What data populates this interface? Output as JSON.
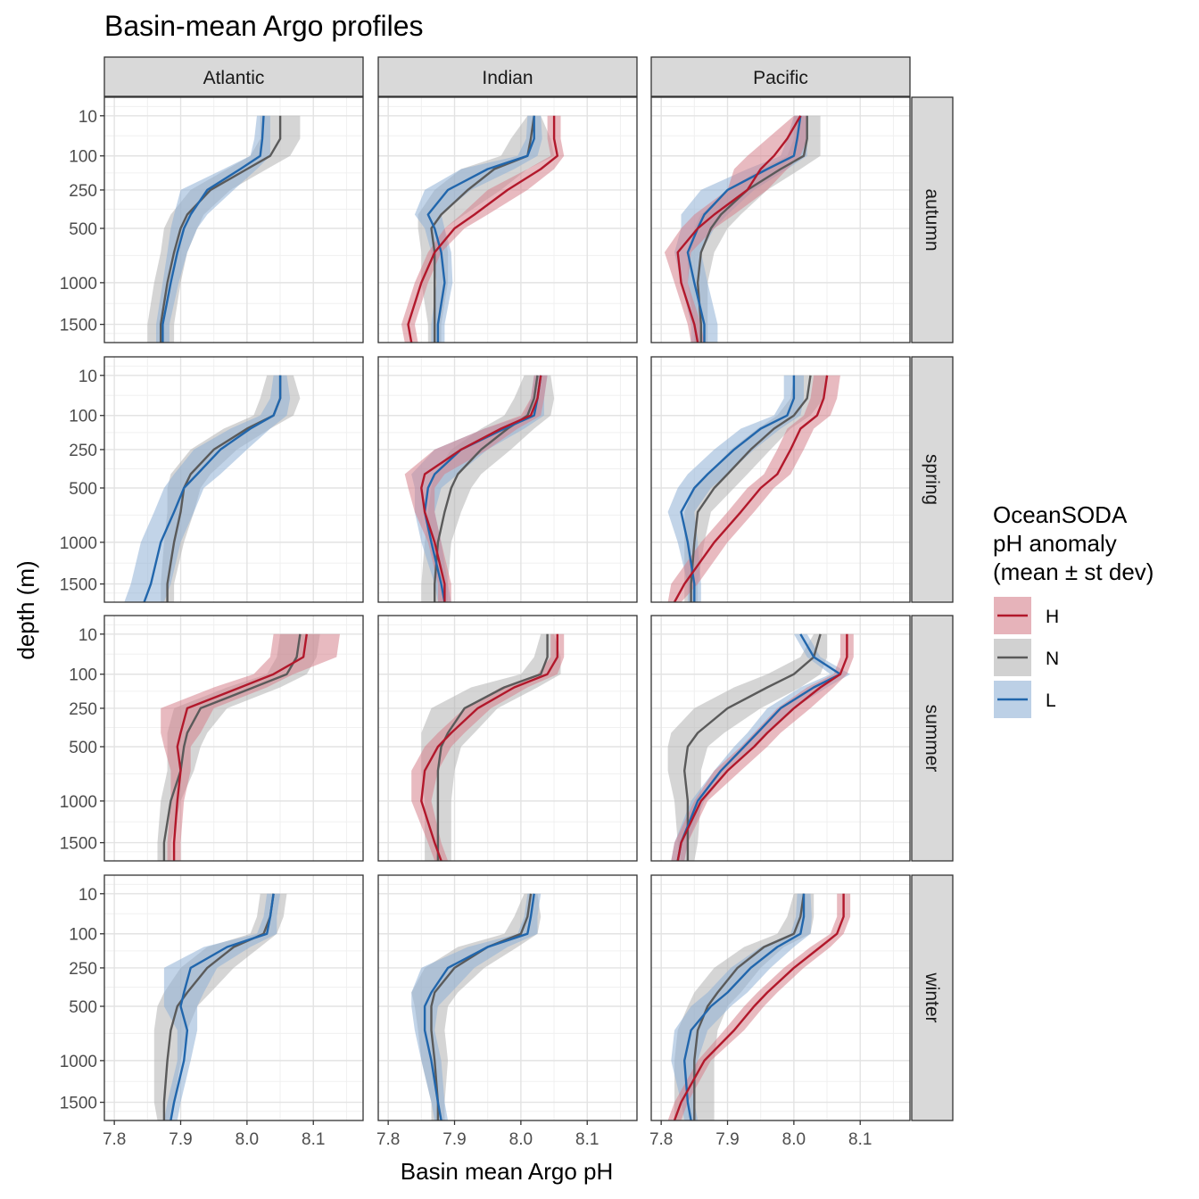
{
  "chart_data": {
    "type": "line",
    "title": "Basin-mean Argo profiles",
    "xlabel": "Basin mean Argo pH",
    "ylabel": "depth (m)",
    "xlim": [
      7.785,
      8.175
    ],
    "x_ticks": [
      7.8,
      7.9,
      8.0,
      8.1
    ],
    "x_tick_labels": [
      "7.8",
      "7.9",
      "8.0",
      "8.1"
    ],
    "y_scale": "sqrt-reversed",
    "ylim": [
      1750,
      0
    ],
    "y_ticks": [
      10,
      100,
      250,
      500,
      1000,
      1500
    ],
    "y_tick_labels": [
      "10",
      "100",
      "250",
      "500",
      "1000",
      "1500"
    ],
    "columns": [
      "Atlantic",
      "Indian",
      "Pacific"
    ],
    "rows": [
      "autumn",
      "spring",
      "summer",
      "winter"
    ],
    "depths": [
      10,
      50,
      100,
      150,
      250,
      400,
      500,
      700,
      1000,
      1500,
      1750
    ],
    "legend": {
      "title_lines": [
        "OceanSODA",
        "pH anomaly",
        "(mean ± st dev)"
      ],
      "entries": [
        {
          "key": "H",
          "label": "H",
          "color": "#b2182b",
          "band": "#d6818c"
        },
        {
          "key": "N",
          "label": "N",
          "color": "#5a5a5a",
          "band": "#b3b3b3"
        },
        {
          "key": "L",
          "label": "L",
          "color": "#2166ac",
          "band": "#8fb0d6"
        }
      ]
    },
    "panels": [
      {
        "basin": "Atlantic",
        "season": "autumn",
        "series": [
          {
            "name": "N",
            "mean": [
              8.05,
              8.05,
              8.035,
              8.0,
              7.945,
              7.91,
              7.9,
              7.89,
              7.88,
              7.87,
              7.87
            ],
            "sd": [
              0.03,
              0.03,
              0.03,
              0.03,
              0.03,
              0.025,
              0.025,
              0.02,
              0.02,
              0.02,
              0.02
            ]
          },
          {
            "name": "L",
            "mean": [
              8.025,
              8.023,
              8.02,
              7.99,
              7.94,
              7.915,
              7.905,
              7.895,
              7.885,
              7.873,
              7.873
            ],
            "sd": [
              0.01,
              0.012,
              0.015,
              0.025,
              0.04,
              0.025,
              0.02,
              0.015,
              0.012,
              0.01,
              0.01
            ]
          }
        ]
      },
      {
        "basin": "Indian",
        "season": "autumn",
        "series": [
          {
            "name": "H",
            "mean": [
              8.05,
              8.05,
              8.055,
              8.03,
              7.98,
              7.93,
              7.9,
              7.87,
              7.85,
              7.83,
              7.835
            ],
            "sd": [
              0.01,
              0.01,
              0.01,
              0.02,
              0.03,
              0.02,
              0.015,
              0.01,
              0.01,
              0.01,
              0.01
            ]
          },
          {
            "name": "N",
            "mean": [
              8.02,
              8.015,
              8.01,
              7.96,
              7.92,
              7.88,
              7.865,
              7.87,
              7.87,
              7.87,
              7.87
            ],
            "sd": [
              0.01,
              0.03,
              0.04,
              0.05,
              0.05,
              0.035,
              0.02,
              0.02,
              0.02,
              0.01,
              0.01
            ]
          },
          {
            "name": "L",
            "mean": [
              8.02,
              8.02,
              8.01,
              7.95,
              7.89,
              7.86,
              7.87,
              7.88,
              7.885,
              7.875,
              7.875
            ],
            "sd": [
              0.01,
              0.012,
              0.015,
              0.04,
              0.035,
              0.02,
              0.015,
              0.015,
              0.012,
              0.01,
              0.01
            ]
          }
        ]
      },
      {
        "basin": "Pacific",
        "season": "autumn",
        "series": [
          {
            "name": "H",
            "mean": [
              8.01,
              7.99,
              7.97,
              7.95,
              7.93,
              7.88,
              7.855,
              7.825,
              7.83,
              7.85,
              7.855
            ],
            "sd": [
              0.01,
              0.03,
              0.04,
              0.04,
              0.03,
              0.03,
              0.025,
              0.02,
              0.01,
              0.01,
              0.01
            ]
          },
          {
            "name": "N",
            "mean": [
              8.02,
              8.02,
              8.015,
              7.98,
              7.93,
              7.89,
              7.875,
              7.86,
              7.855,
              7.86,
              7.86
            ],
            "sd": [
              0.02,
              0.02,
              0.025,
              0.03,
              0.03,
              0.03,
              0.025,
              0.02,
              0.015,
              0.01,
              0.01
            ]
          },
          {
            "name": "L",
            "mean": [
              8.01,
              8.005,
              8.0,
              7.96,
              7.9,
              7.865,
              7.855,
              7.84,
              7.85,
              7.865,
              7.865
            ],
            "sd": [
              0.01,
              0.015,
              0.02,
              0.03,
              0.04,
              0.035,
              0.025,
              0.02,
              0.02,
              0.02,
              0.02
            ]
          }
        ]
      },
      {
        "basin": "Atlantic",
        "season": "spring",
        "series": [
          {
            "name": "N",
            "mean": [
              8.05,
              8.05,
              8.04,
              8.0,
              7.95,
              7.915,
              7.905,
              7.9,
              7.89,
              7.88,
              7.88
            ],
            "sd": [
              0.02,
              0.03,
              0.03,
              0.035,
              0.035,
              0.03,
              0.025,
              0.02,
              0.015,
              0.01,
              0.01
            ]
          },
          {
            "name": "L",
            "mean": [
              8.05,
              8.05,
              8.04,
              8.005,
              7.96,
              7.925,
              7.905,
              7.89,
              7.87,
              7.855,
              7.845
            ],
            "sd": [
              0.01,
              0.015,
              0.02,
              0.03,
              0.04,
              0.035,
              0.03,
              0.03,
              0.03,
              0.03,
              0.03
            ]
          }
        ]
      },
      {
        "basin": "Indian",
        "season": "spring",
        "series": [
          {
            "name": "H",
            "mean": [
              8.03,
              8.025,
              8.015,
              7.97,
              7.91,
              7.855,
              7.85,
              7.855,
              7.87,
              7.885,
              7.885
            ],
            "sd": [
              0.01,
              0.01,
              0.015,
              0.025,
              0.04,
              0.03,
              0.02,
              0.015,
              0.01,
              0.01,
              0.01
            ]
          },
          {
            "name": "N",
            "mean": [
              8.025,
              8.02,
              8.01,
              7.98,
              7.94,
              7.905,
              7.895,
              7.885,
              7.875,
              7.87,
              7.87
            ],
            "sd": [
              0.02,
              0.03,
              0.035,
              0.04,
              0.045,
              0.035,
              0.03,
              0.025,
              0.02,
              0.02,
              0.02
            ]
          },
          {
            "name": "L",
            "mean": [
              8.03,
              8.025,
              8.02,
              7.975,
              7.91,
              7.87,
              7.86,
              7.855,
              7.865,
              7.88,
              7.885
            ],
            "sd": [
              0.01,
              0.01,
              0.015,
              0.03,
              0.04,
              0.035,
              0.02,
              0.015,
              0.015,
              0.01,
              0.01
            ]
          }
        ]
      },
      {
        "basin": "Pacific",
        "season": "spring",
        "series": [
          {
            "name": "H",
            "mean": [
              8.05,
              8.045,
              8.035,
              8.01,
              7.995,
              7.975,
              7.95,
              7.92,
              7.88,
              7.835,
              7.82
            ],
            "sd": [
              0.02,
              0.02,
              0.02,
              0.02,
              0.02,
              0.02,
              0.02,
              0.02,
              0.02,
              0.02,
              0.01
            ]
          },
          {
            "name": "N",
            "mean": [
              8.025,
              8.02,
              8.0,
              7.97,
              7.935,
              7.9,
              7.88,
              7.855,
              7.85,
              7.845,
              7.845
            ],
            "sd": [
              0.025,
              0.025,
              0.025,
              0.025,
              0.03,
              0.03,
              0.03,
              0.02,
              0.015,
              0.01,
              0.01
            ]
          },
          {
            "name": "L",
            "mean": [
              8.0,
              8.0,
              7.99,
              7.95,
              7.91,
              7.87,
              7.85,
              7.83,
              7.84,
              7.85,
              7.85
            ],
            "sd": [
              0.015,
              0.015,
              0.02,
              0.03,
              0.03,
              0.03,
              0.025,
              0.02,
              0.015,
              0.01,
              0.01
            ]
          }
        ]
      },
      {
        "basin": "Atlantic",
        "season": "summer",
        "series": [
          {
            "name": "H",
            "mean": [
              8.09,
              8.085,
              8.04,
              7.99,
              7.91,
              7.9,
              7.895,
              7.9,
              7.895,
              7.89,
              7.89
            ],
            "sd": [
              0.05,
              0.05,
              0.03,
              0.04,
              0.04,
              0.03,
              0.02,
              0.015,
              0.01,
              0.01,
              0.01
            ]
          },
          {
            "name": "N",
            "mean": [
              8.08,
              8.075,
              8.06,
              8.01,
              7.93,
              7.91,
              7.905,
              7.9,
              7.885,
              7.875,
              7.875
            ],
            "sd": [
              0.03,
              0.03,
              0.03,
              0.04,
              0.04,
              0.03,
              0.025,
              0.02,
              0.015,
              0.01,
              0.01
            ]
          }
        ]
      },
      {
        "basin": "Indian",
        "season": "summer",
        "series": [
          {
            "name": "H",
            "mean": [
              8.055,
              8.055,
              8.04,
              7.99,
              7.935,
              7.895,
              7.875,
              7.855,
              7.85,
              7.87,
              7.88
            ],
            "sd": [
              0.01,
              0.01,
              0.015,
              0.02,
              0.02,
              0.02,
              0.02,
              0.02,
              0.015,
              0.01,
              0.01
            ]
          },
          {
            "name": "N",
            "mean": [
              8.04,
              8.04,
              8.03,
              7.975,
              7.915,
              7.89,
              7.88,
              7.875,
              7.875,
              7.875,
              7.875
            ],
            "sd": [
              0.01,
              0.02,
              0.03,
              0.05,
              0.05,
              0.04,
              0.03,
              0.025,
              0.02,
              0.02,
              0.02
            ]
          }
        ]
      },
      {
        "basin": "Pacific",
        "season": "summer",
        "series": [
          {
            "name": "H",
            "mean": [
              8.08,
              8.08,
              8.07,
              8.04,
              8.0,
              7.96,
              7.94,
              7.9,
              7.86,
              7.83,
              7.825
            ],
            "sd": [
              0.01,
              0.01,
              0.01,
              0.02,
              0.025,
              0.02,
              0.02,
              0.02,
              0.01,
              0.01,
              0.01
            ]
          },
          {
            "name": "N",
            "mean": [
              8.04,
              8.03,
              8.0,
              7.96,
              7.9,
              7.855,
              7.84,
              7.835,
              7.84,
              7.84,
              7.84
            ],
            "sd": [
              0.01,
              0.02,
              0.04,
              0.05,
              0.05,
              0.04,
              0.03,
              0.025,
              0.02,
              0.015,
              0.01
            ]
          },
          {
            "name": "L",
            "mean": [
              8.01,
              8.03,
              8.07,
              8.03,
              7.98,
              7.945,
              7.925,
              7.89,
              7.855,
              7.83,
              7.825
            ],
            "sd": [
              0.01,
              0.01,
              0.015,
              0.02,
              0.02,
              0.015,
              0.015,
              0.01,
              0.01,
              0.01,
              0.01
            ]
          }
        ]
      },
      {
        "basin": "Atlantic",
        "season": "winter",
        "series": [
          {
            "name": "N",
            "mean": [
              8.04,
              8.035,
              8.025,
              7.98,
              7.94,
              7.91,
              7.895,
              7.885,
              7.88,
              7.875,
              7.875
            ],
            "sd": [
              0.02,
              0.02,
              0.02,
              0.04,
              0.04,
              0.035,
              0.03,
              0.025,
              0.02,
              0.015,
              0.01
            ]
          },
          {
            "name": "L",
            "mean": [
              8.04,
              8.035,
              8.03,
              7.97,
              7.915,
              7.905,
              7.9,
              7.91,
              7.905,
              7.89,
              7.885
            ],
            "sd": [
              0.01,
              0.01,
              0.015,
              0.035,
              0.04,
              0.03,
              0.025,
              0.015,
              0.01,
              0.01,
              0.01
            ]
          }
        ]
      },
      {
        "basin": "Indian",
        "season": "winter",
        "series": [
          {
            "name": "N",
            "mean": [
              8.015,
              8.01,
              8.0,
              7.95,
              7.9,
              7.87,
              7.865,
              7.865,
              7.87,
              7.875,
              7.875
            ],
            "sd": [
              0.01,
              0.02,
              0.025,
              0.045,
              0.045,
              0.035,
              0.025,
              0.02,
              0.02,
              0.01,
              0.01
            ]
          },
          {
            "name": "L",
            "mean": [
              8.02,
              8.015,
              8.01,
              7.95,
              7.89,
              7.865,
              7.855,
              7.855,
              7.865,
              7.875,
              7.88
            ],
            "sd": [
              0.01,
              0.01,
              0.015,
              0.03,
              0.04,
              0.03,
              0.02,
              0.015,
              0.015,
              0.01,
              0.01
            ]
          }
        ]
      },
      {
        "basin": "Pacific",
        "season": "winter",
        "series": [
          {
            "name": "H",
            "mean": [
              8.075,
              8.075,
              8.065,
              8.04,
              8.0,
              7.96,
              7.94,
              7.91,
              7.865,
              7.83,
              7.82
            ],
            "sd": [
              0.01,
              0.01,
              0.01,
              0.015,
              0.015,
              0.015,
              0.015,
              0.015,
              0.01,
              0.01,
              0.01
            ]
          },
          {
            "name": "N",
            "mean": [
              8.015,
              8.01,
              8.0,
              7.955,
              7.915,
              7.885,
              7.87,
              7.855,
              7.85,
              7.85,
              7.85
            ],
            "sd": [
              0.015,
              0.02,
              0.025,
              0.03,
              0.035,
              0.035,
              0.03,
              0.03,
              0.03,
              0.03,
              0.03
            ]
          },
          {
            "name": "L",
            "mean": [
              8.015,
              8.015,
              8.01,
              7.975,
              7.935,
              7.9,
              7.875,
              7.845,
              7.835,
              7.84,
              7.845
            ],
            "sd": [
              0.01,
              0.012,
              0.015,
              0.025,
              0.03,
              0.03,
              0.03,
              0.025,
              0.02,
              0.01,
              0.01
            ]
          }
        ]
      }
    ]
  }
}
